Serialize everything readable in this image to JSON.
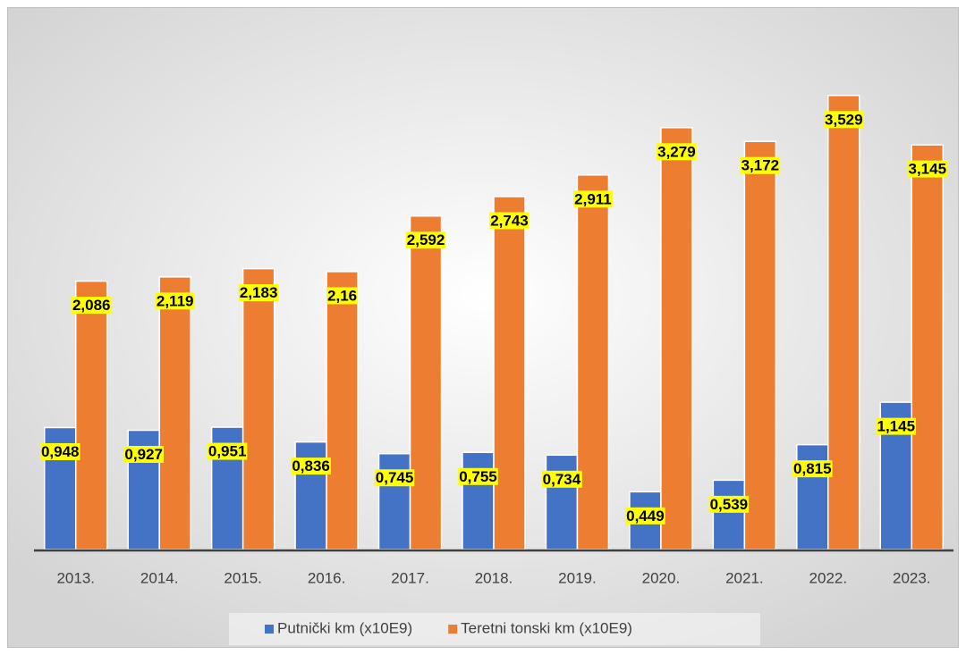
{
  "chart_data": {
    "type": "bar",
    "categories": [
      "2013.",
      "2014.",
      "2015.",
      "2016.",
      "2017.",
      "2018.",
      "2019.",
      "2020.",
      "2021.",
      "2022.",
      "2023."
    ],
    "series": [
      {
        "name": "Putnički km (x10E9)",
        "color": "#4472c4",
        "values": [
          0.948,
          0.927,
          0.951,
          0.836,
          0.745,
          0.755,
          0.734,
          0.449,
          0.539,
          0.815,
          1.145
        ],
        "value_labels": [
          "0,948",
          "0,927",
          "0,951",
          "0,836",
          "0,745",
          "0,755",
          "0,734",
          "0,449",
          "0,539",
          "0,815",
          "1,145"
        ]
      },
      {
        "name": "Teretni tonski km (x10E9)",
        "color": "#ed7d31",
        "values": [
          2.086,
          2.119,
          2.183,
          2.16,
          2.592,
          2.743,
          2.911,
          3.279,
          3.172,
          3.529,
          3.145
        ],
        "value_labels": [
          "2,086",
          "2,119",
          "2,183",
          "2,16",
          "2,592",
          "2,743",
          "2,911",
          "3,279",
          "3,172",
          "3,529",
          "3,145"
        ]
      }
    ],
    "label_background": "#ffff00",
    "legend": "bottom"
  }
}
